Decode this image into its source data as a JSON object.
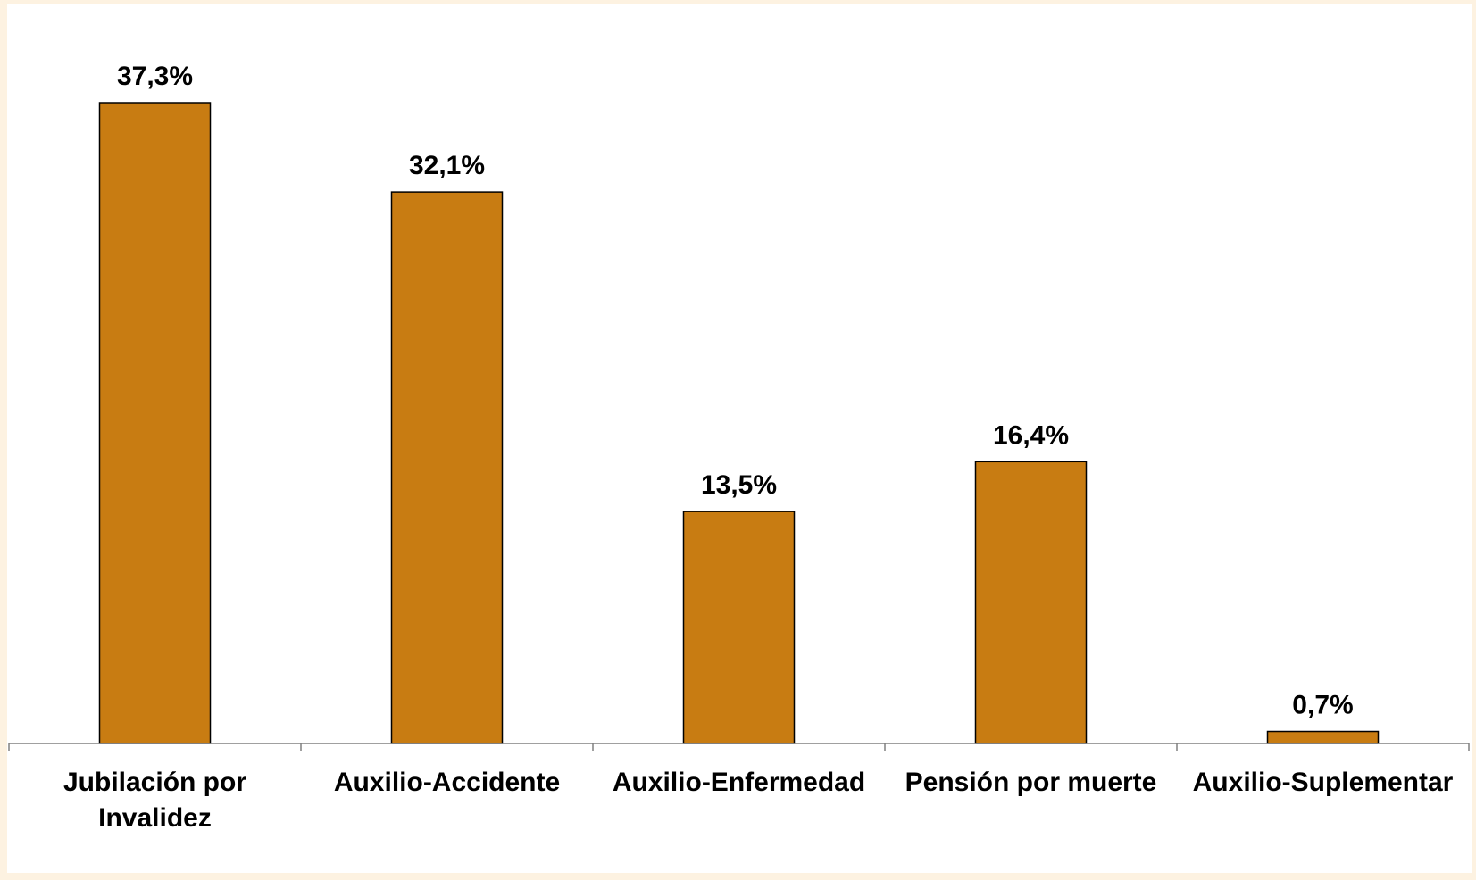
{
  "chart_data": {
    "type": "bar",
    "title": "",
    "xlabel": "",
    "ylabel": "",
    "categories": [
      [
        "Jubilación por",
        "Invalidez"
      ],
      [
        "Auxilio-Accidente"
      ],
      [
        "Auxilio-Enfermedad"
      ],
      [
        "Pensión por muerte"
      ],
      [
        "Auxilio-Suplementar"
      ]
    ],
    "values": [
      37.3,
      32.1,
      13.5,
      16.4,
      0.7
    ],
    "data_labels": [
      "37,3%",
      "32,1%",
      "13,5%",
      "16,4%",
      "0,7%"
    ],
    "ylim": [
      0,
      40
    ],
    "grid": false,
    "legend": "none",
    "colors": {
      "bar": "#c87c12",
      "background": "#fdf2e1",
      "plot_background": "#ffffff"
    }
  }
}
